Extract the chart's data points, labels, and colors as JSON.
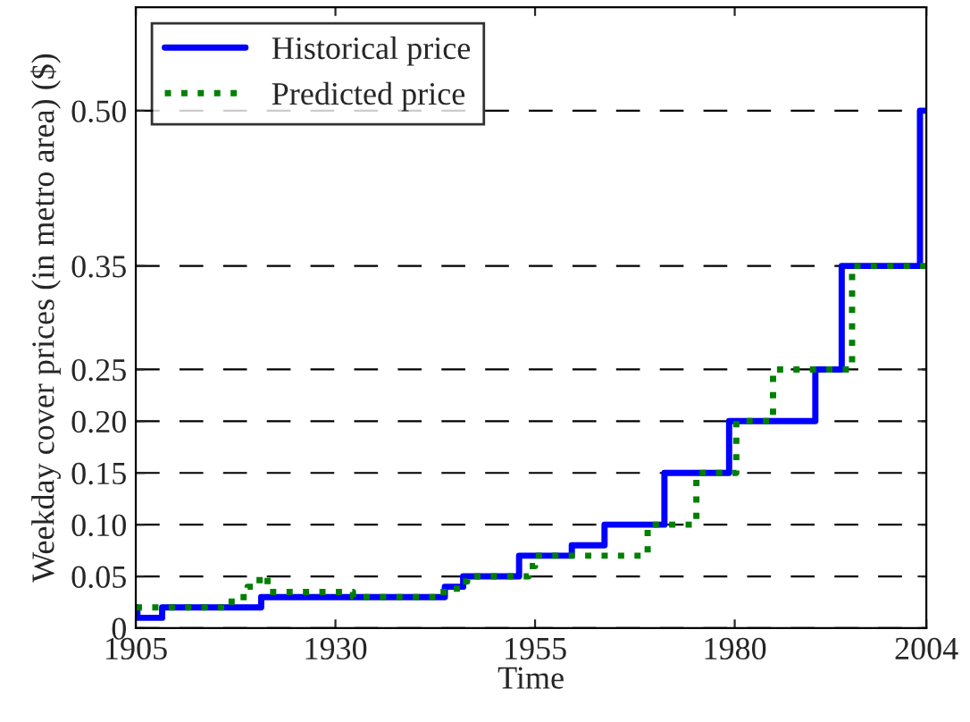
{
  "chart_data": {
    "type": "step",
    "xlabel": "Time",
    "ylabel": "Weekday cover prices (in metro area) ($)",
    "series": [
      {
        "name": "Historical price",
        "color": "#0000ff",
        "line_style": "solid",
        "x": [
          1905,
          1905.2,
          1908.3,
          1920.7,
          1943.7,
          1946,
          1953,
          1959.6,
          1963.7,
          1971.2,
          1979.3,
          1990.1,
          1993.4,
          2003.2,
          2004
        ],
        "values": [
          0.02,
          0.01,
          0.02,
          0.03,
          0.04,
          0.05,
          0.07,
          0.08,
          0.1,
          0.15,
          0.2,
          0.25,
          0.35,
          0.5,
          0.5
        ]
      },
      {
        "name": "Predicted price",
        "color": "#008000",
        "line_style": "dotted",
        "x": [
          1905,
          1917,
          1919,
          1920.5,
          1921.5,
          1932.2,
          1942.6,
          1945.2,
          1946.5,
          1954.2,
          1955,
          1969.1,
          1975.2,
          1980.2,
          1984.8,
          1994.7,
          2004
        ],
        "values": [
          0.02,
          0.03,
          0.04,
          0.05,
          0.035,
          0.03,
          0.035,
          0.045,
          0.05,
          0.06,
          0.07,
          0.1,
          0.15,
          0.2,
          0.25,
          0.35,
          0.35
        ]
      }
    ],
    "xlim": [
      1905,
      2004
    ],
    "xticks": [
      1905,
      1930,
      1955,
      1980,
      2004
    ],
    "ylim": [
      0,
      0.6
    ],
    "yticks": [
      0,
      {
        "value": 0.05,
        "label": "0.05"
      },
      {
        "value": 0.1,
        "label": "0.10"
      },
      {
        "value": 0.15,
        "label": "0.15"
      },
      {
        "value": 0.2,
        "label": "0.20"
      },
      {
        "value": 0.25,
        "label": "0.25"
      },
      {
        "value": 0.35,
        "label": "0.35"
      },
      {
        "value": 0.5,
        "label": "0.50"
      }
    ],
    "grid": "y",
    "legend": "top left"
  }
}
